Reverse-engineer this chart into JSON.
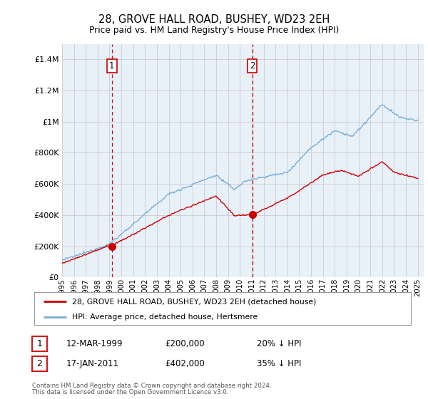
{
  "title": "28, GROVE HALL ROAD, BUSHEY, WD23 2EH",
  "subtitle": "Price paid vs. HM Land Registry's House Price Index (HPI)",
  "ylim": [
    0,
    1500000
  ],
  "yticks": [
    0,
    200000,
    400000,
    600000,
    800000,
    1000000,
    1200000,
    1400000
  ],
  "ytick_labels": [
    "£0",
    "£200K",
    "£400K",
    "£600K",
    "£800K",
    "£1M",
    "£1.2M",
    "£1.4M"
  ],
  "xlim_min": 1995,
  "xlim_max": 2025.5,
  "transaction1": {
    "date": "12-MAR-1999",
    "price": 200000,
    "label": "1",
    "year": 1999.2
  },
  "transaction2": {
    "date": "17-JAN-2011",
    "price": 402000,
    "label": "2",
    "year": 2011.05
  },
  "legend_entry1": "28, GROVE HALL ROAD, BUSHEY, WD23 2EH (detached house)",
  "legend_entry2": "HPI: Average price, detached house, Hertsmere",
  "footnote1": "Contains HM Land Registry data © Crown copyright and database right 2024.",
  "footnote2": "This data is licensed under the Open Government Licence v3.0.",
  "table_row1": [
    "1",
    "12-MAR-1999",
    "£200,000",
    "20% ↓ HPI"
  ],
  "table_row2": [
    "2",
    "17-JAN-2011",
    "£402,000",
    "35% ↓ HPI"
  ],
  "line_color_property": "#cc0000",
  "line_color_hpi": "#7aafd4",
  "vline_color": "#cc0000",
  "chart_bg": "#e8f0f8",
  "background_color": "#ffffff",
  "grid_color": "#cccccc",
  "label_box_color": "#cc0000"
}
